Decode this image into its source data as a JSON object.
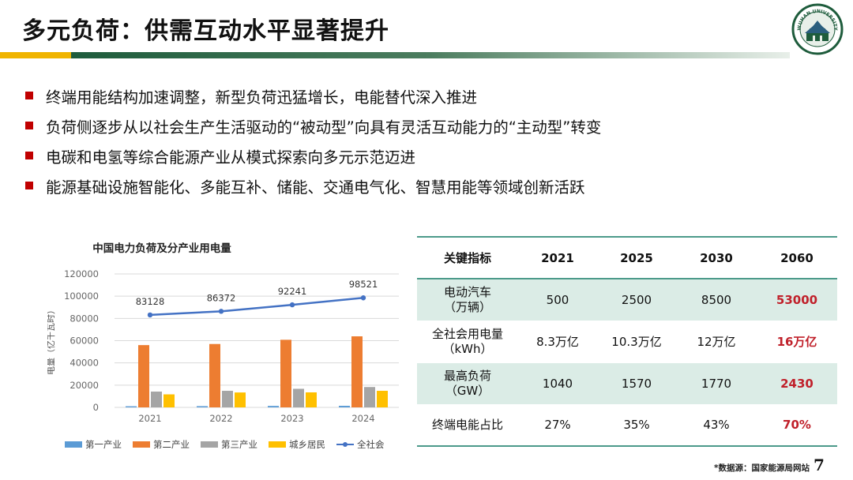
{
  "title": "多元负荷：供需互动水平显著提升",
  "colors": {
    "accent_gold": "#f0b400",
    "accent_green": "#1e5c3c",
    "bullet_red": "#c00000",
    "highlight_red": "#c0202a",
    "table_shade": "#dbece6"
  },
  "logo": {
    "name": "university-seal",
    "text": "WUHAN UNIVERSITY"
  },
  "bullets": [
    "终端用能结构加速调整，新型负荷迅猛增长，电能替代深入推进",
    "负荷侧逐步从以社会生产生活驱动的“被动型”向具有灵活互动能力的“主动型”转变",
    "电碳和电氢等综合能源产业从模式探索向多元示范迈进",
    "能源基础设施智能化、多能互补、储能、交通电气化、智慧用能等领域创新活跃"
  ],
  "chart_data": {
    "type": "bar",
    "title": "中国电力负荷及分产业用电量",
    "ylabel": "电量（亿千瓦时）",
    "xlabel": "",
    "categories": [
      "2021",
      "2022",
      "2023",
      "2024"
    ],
    "ylim": [
      0,
      120000
    ],
    "yticks": [
      0,
      20000,
      40000,
      60000,
      80000,
      100000,
      120000
    ],
    "series": [
      {
        "name": "第一产业",
        "kind": "bar",
        "color": "#5b9bd5",
        "values": [
          1000,
          1100,
          1300,
          1400
        ]
      },
      {
        "name": "第二产业",
        "kind": "bar",
        "color": "#ed7d31",
        "values": [
          56000,
          57000,
          60800,
          63900
        ]
      },
      {
        "name": "第三产业",
        "kind": "bar",
        "color": "#a5a5a5",
        "values": [
          14200,
          14900,
          16700,
          18300
        ]
      },
      {
        "name": "城乡居民",
        "kind": "bar",
        "color": "#ffc000",
        "values": [
          11700,
          13400,
          13500,
          14900
        ]
      },
      {
        "name": "全社会",
        "kind": "line",
        "color": "#4472c4",
        "values": [
          83128,
          86372,
          92241,
          98521
        ]
      }
    ],
    "data_labels": [
      "83128",
      "86372",
      "92241",
      "98521"
    ],
    "legend_position": "bottom"
  },
  "table": {
    "headers": [
      "关键指标",
      "2021",
      "2025",
      "2030",
      "2060"
    ],
    "rows": [
      {
        "label": "电动汽车",
        "sub": "（万辆）",
        "values": [
          "500",
          "2500",
          "8500",
          "53000"
        ]
      },
      {
        "label": "全社会用电量",
        "sub": "（kWh）",
        "values": [
          "8.3万亿",
          "10.3万亿",
          "12万亿",
          "16万亿"
        ]
      },
      {
        "label": "最高负荷",
        "sub": "（GW）",
        "values": [
          "1040",
          "1570",
          "1770",
          "2430"
        ]
      },
      {
        "label": "终端电能占比",
        "sub": "",
        "values": [
          "27%",
          "35%",
          "43%",
          "70%"
        ]
      }
    ]
  },
  "source": "*数据源：国家能源局网站",
  "page_number": "7"
}
